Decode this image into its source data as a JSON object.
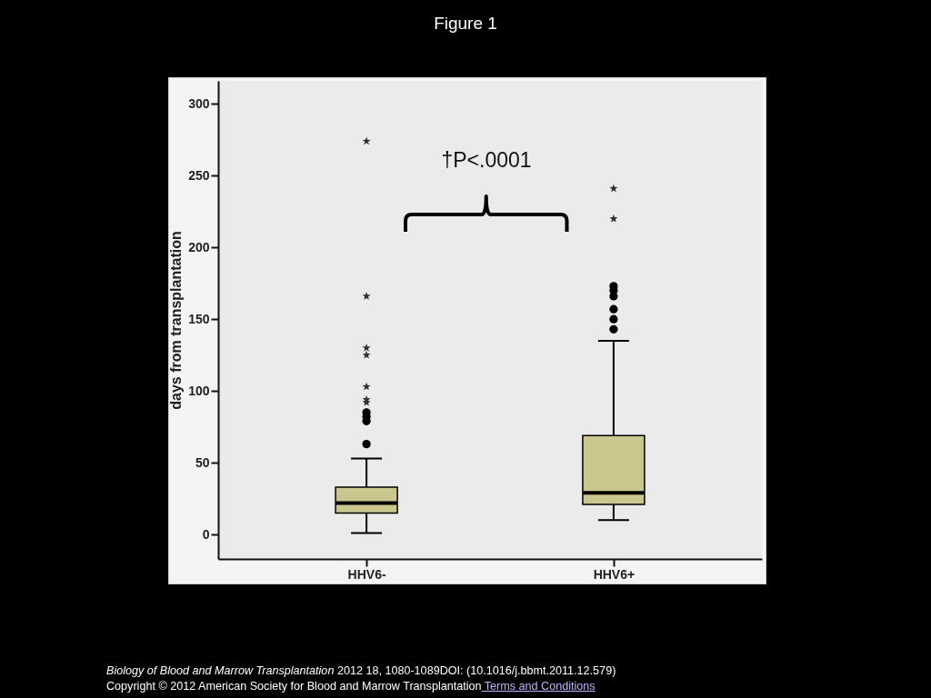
{
  "chart_data": {
    "type": "box",
    "title": "Figure 1",
    "ylabel": "days from transplantation",
    "categories": [
      "HHV6-",
      "HHV6+"
    ],
    "color": "#c9c78e",
    "boxes": [
      {
        "low": 1,
        "q1": 15,
        "median": 22,
        "q3": 33,
        "high": 53,
        "outliers": [
          63,
          79,
          82,
          85
        ]
      },
      {
        "low": 10,
        "q1": 21,
        "median": 29,
        "q3": 69,
        "high": 135,
        "outliers": [
          143,
          150,
          157,
          166,
          170,
          173
        ]
      }
    ],
    "series": [
      {
        "type": "scatter",
        "marker": "star",
        "color": "#333333",
        "x": [
          "HHV6-",
          "HHV6-",
          "HHV6-",
          "HHV6-",
          "HHV6-",
          "HHV6-",
          "HHV6-",
          "HHV6+",
          "HHV6+"
        ],
        "values": [
          274,
          166,
          130,
          125,
          103,
          94,
          92,
          241,
          220
        ]
      }
    ],
    "ylim": [
      -17,
      316
    ],
    "yticks": [
      0,
      50,
      100,
      150,
      200,
      250,
      300
    ],
    "annotations": [
      "†P<.0001",
      "Biology of Blood and Marrow Transplantation",
      "2012 18, 1080-1089DOI: (10.1016/j.bbmt.2011.12.579)",
      "Copyright © 2012 American Society for Blood and Marrow Transplantation",
      "Terms and Conditions"
    ]
  }
}
